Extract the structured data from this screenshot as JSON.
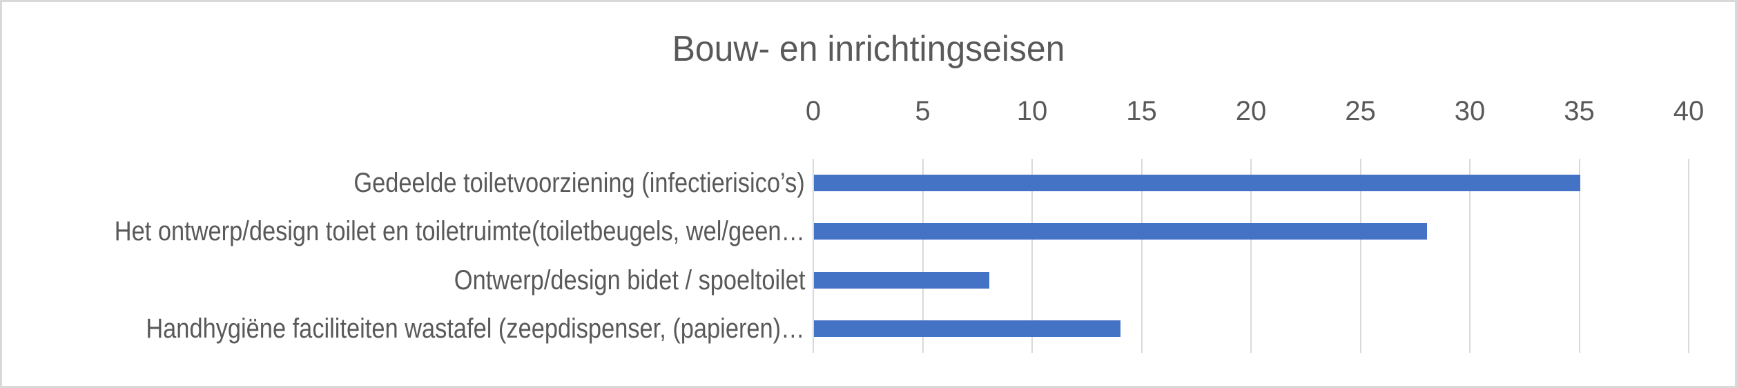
{
  "chart_data": {
    "type": "bar",
    "orientation": "horizontal",
    "title": "Bouw- en inrichtingseisen",
    "categories": [
      "Gedeelde toiletvoorziening (infectierisico’s)",
      "Het ontwerp/design toilet en toiletruimte(toiletbeugels, wel/geen…",
      "Ontwerp/design bidet / spoeltoilet",
      "Handhygiëne faciliteiten wastafel (zeepdispenser, (papieren)…"
    ],
    "values": [
      35,
      28,
      8,
      14
    ],
    "xlabel": "",
    "ylabel": "",
    "xlim": [
      0,
      40
    ],
    "xticks": [
      0,
      5,
      10,
      15,
      20,
      25,
      30,
      35,
      40
    ],
    "grid": true,
    "legend": false,
    "colors": {
      "bar": "#4472C4",
      "gridline": "#D9D9D9",
      "text": "#595959",
      "frame_border": "#D9D9D9",
      "background": "#FFFFFF"
    }
  }
}
